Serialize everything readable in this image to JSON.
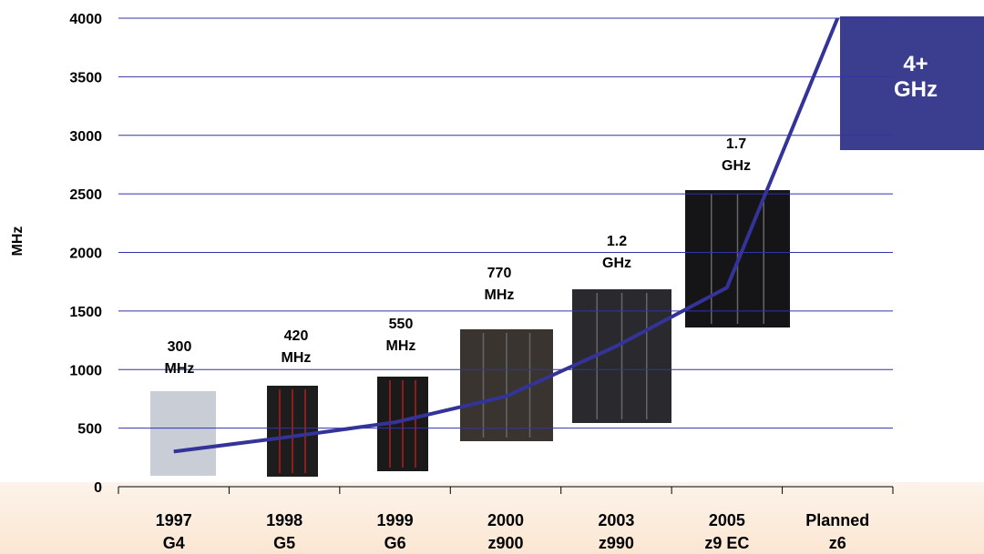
{
  "chart_data": {
    "type": "line",
    "y_label": "MHz",
    "categories": [
      "1997 G4",
      "1998 G5",
      "1999 G6",
      "2000 z900",
      "2003 z990",
      "2005 z9 EC",
      "Planned z6"
    ],
    "series": [
      {
        "color": "#33339a",
        "values": [
          300,
          420,
          550,
          770,
          1200,
          1700,
          4000
        ],
        "value_labels": [
          "300 MHz",
          "420 MHz",
          "550 MHz",
          "770 MHz",
          "1.2 GHz",
          "1.7 GHz",
          "4+ GHz"
        ]
      }
    ],
    "ylim": [
      0,
      4000
    ],
    "yticks": [
      0,
      500,
      1000,
      1500,
      2000,
      2500,
      3000,
      3500,
      4000
    ],
    "grid": true
  }
}
